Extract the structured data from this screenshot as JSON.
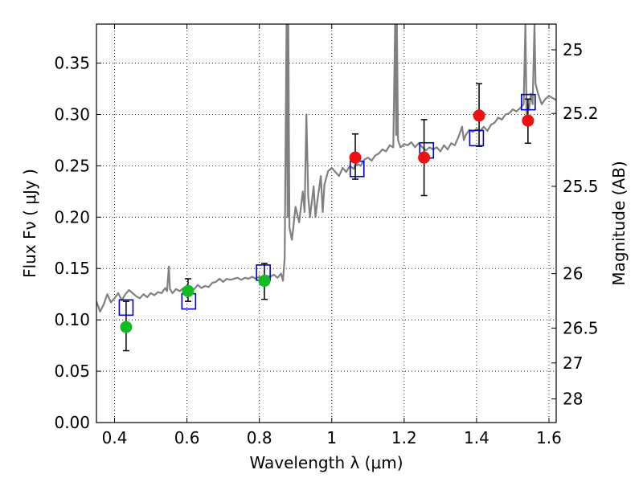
{
  "chart_data": {
    "type": "scatter",
    "xlabel": "Wavelength  λ (μm)",
    "ylabel": "Flux  Fν  ( μJy )",
    "ylabel_right": "Magnitude (AB)",
    "xlim": [
      0.35,
      1.62
    ],
    "ylim": [
      0.0,
      0.388
    ],
    "grid": true,
    "x_ticks": [
      {
        "value": 0.4,
        "label": "0.4"
      },
      {
        "value": 0.6,
        "label": "0.6"
      },
      {
        "value": 0.8,
        "label": "0.8"
      },
      {
        "value": 1.0,
        "label": "1"
      },
      {
        "value": 1.2,
        "label": "1.2"
      },
      {
        "value": 1.4,
        "label": "1.4"
      },
      {
        "value": 1.6,
        "label": "1.6"
      }
    ],
    "y_ticks": [
      {
        "value": 0.0,
        "label": "0.00"
      },
      {
        "value": 0.05,
        "label": "0.05"
      },
      {
        "value": 0.1,
        "label": "0.10"
      },
      {
        "value": 0.15,
        "label": "0.15"
      },
      {
        "value": 0.2,
        "label": "0.20"
      },
      {
        "value": 0.25,
        "label": "0.25"
      },
      {
        "value": 0.3,
        "label": "0.30"
      },
      {
        "value": 0.35,
        "label": "0.35"
      }
    ],
    "right_ticks": [
      {
        "flux": 0.363,
        "label": "25"
      },
      {
        "flux": 0.301,
        "label": "25.2"
      },
      {
        "flux": 0.23,
        "label": "25.5"
      },
      {
        "flux": 0.145,
        "label": "26"
      },
      {
        "flux": 0.092,
        "label": "26.5"
      },
      {
        "flux": 0.058,
        "label": "27"
      },
      {
        "flux": 0.023,
        "label": "28"
      }
    ],
    "series": [
      {
        "kind": "line",
        "color": "#808080",
        "points": [
          [
            0.35,
            0.118
          ],
          [
            0.36,
            0.108
          ],
          [
            0.37,
            0.115
          ],
          [
            0.38,
            0.125
          ],
          [
            0.39,
            0.117
          ],
          [
            0.4,
            0.121
          ],
          [
            0.41,
            0.126
          ],
          [
            0.42,
            0.119
          ],
          [
            0.43,
            0.125
          ],
          [
            0.44,
            0.129
          ],
          [
            0.45,
            0.126
          ],
          [
            0.46,
            0.123
          ],
          [
            0.47,
            0.121
          ],
          [
            0.48,
            0.125
          ],
          [
            0.49,
            0.122
          ],
          [
            0.5,
            0.126
          ],
          [
            0.51,
            0.124
          ],
          [
            0.52,
            0.127
          ],
          [
            0.53,
            0.126
          ],
          [
            0.54,
            0.131
          ],
          [
            0.545,
            0.128
          ],
          [
            0.55,
            0.152
          ],
          [
            0.553,
            0.13
          ],
          [
            0.56,
            0.126
          ],
          [
            0.57,
            0.13
          ],
          [
            0.58,
            0.128
          ],
          [
            0.59,
            0.131
          ],
          [
            0.6,
            0.127
          ],
          [
            0.61,
            0.131
          ],
          [
            0.62,
            0.13
          ],
          [
            0.63,
            0.134
          ],
          [
            0.64,
            0.131
          ],
          [
            0.65,
            0.133
          ],
          [
            0.66,
            0.132
          ],
          [
            0.67,
            0.136
          ],
          [
            0.68,
            0.137
          ],
          [
            0.69,
            0.14
          ],
          [
            0.7,
            0.137
          ],
          [
            0.71,
            0.14
          ],
          [
            0.72,
            0.139
          ],
          [
            0.73,
            0.14
          ],
          [
            0.74,
            0.141
          ],
          [
            0.75,
            0.139
          ],
          [
            0.76,
            0.141
          ],
          [
            0.77,
            0.14
          ],
          [
            0.78,
            0.142
          ],
          [
            0.79,
            0.14
          ],
          [
            0.8,
            0.142
          ],
          [
            0.81,
            0.141
          ],
          [
            0.82,
            0.143
          ],
          [
            0.83,
            0.142
          ],
          [
            0.84,
            0.144
          ],
          [
            0.85,
            0.141
          ],
          [
            0.86,
            0.145
          ],
          [
            0.865,
            0.138
          ],
          [
            0.87,
            0.16
          ],
          [
            0.875,
            0.388
          ],
          [
            0.878,
            0.2
          ],
          [
            0.88,
            0.388
          ],
          [
            0.883,
            0.19
          ],
          [
            0.89,
            0.178
          ],
          [
            0.9,
            0.21
          ],
          [
            0.91,
            0.195
          ],
          [
            0.92,
            0.225
          ],
          [
            0.925,
            0.205
          ],
          [
            0.93,
            0.3
          ],
          [
            0.935,
            0.22
          ],
          [
            0.94,
            0.2
          ],
          [
            0.95,
            0.23
          ],
          [
            0.955,
            0.2
          ],
          [
            0.96,
            0.215
          ],
          [
            0.97,
            0.24
          ],
          [
            0.975,
            0.205
          ],
          [
            0.98,
            0.232
          ],
          [
            0.99,
            0.245
          ],
          [
            1.0,
            0.248
          ],
          [
            1.01,
            0.244
          ],
          [
            1.02,
            0.24
          ],
          [
            1.03,
            0.248
          ],
          [
            1.04,
            0.244
          ],
          [
            1.05,
            0.25
          ],
          [
            1.06,
            0.247
          ],
          [
            1.07,
            0.252
          ],
          [
            1.08,
            0.25
          ],
          [
            1.09,
            0.256
          ],
          [
            1.1,
            0.258
          ],
          [
            1.11,
            0.255
          ],
          [
            1.12,
            0.26
          ],
          [
            1.13,
            0.262
          ],
          [
            1.14,
            0.266
          ],
          [
            1.15,
            0.264
          ],
          [
            1.16,
            0.27
          ],
          [
            1.17,
            0.268
          ],
          [
            1.175,
            0.388
          ],
          [
            1.178,
            0.28
          ],
          [
            1.18,
            0.388
          ],
          [
            1.183,
            0.275
          ],
          [
            1.19,
            0.268
          ],
          [
            1.2,
            0.271
          ],
          [
            1.21,
            0.27
          ],
          [
            1.22,
            0.273
          ],
          [
            1.23,
            0.268
          ],
          [
            1.24,
            0.272
          ],
          [
            1.25,
            0.268
          ],
          [
            1.26,
            0.265
          ],
          [
            1.27,
            0.268
          ],
          [
            1.28,
            0.266
          ],
          [
            1.29,
            0.268
          ],
          [
            1.3,
            0.264
          ],
          [
            1.31,
            0.27
          ],
          [
            1.32,
            0.266
          ],
          [
            1.33,
            0.272
          ],
          [
            1.34,
            0.27
          ],
          [
            1.35,
            0.278
          ],
          [
            1.36,
            0.288
          ],
          [
            1.365,
            0.275
          ],
          [
            1.37,
            0.28
          ],
          [
            1.38,
            0.285
          ],
          [
            1.39,
            0.283
          ],
          [
            1.4,
            0.286
          ],
          [
            1.41,
            0.284
          ],
          [
            1.42,
            0.288
          ],
          [
            1.43,
            0.284
          ],
          [
            1.44,
            0.29
          ],
          [
            1.45,
            0.292
          ],
          [
            1.46,
            0.297
          ],
          [
            1.47,
            0.295
          ],
          [
            1.48,
            0.3
          ],
          [
            1.49,
            0.301
          ],
          [
            1.5,
            0.305
          ],
          [
            1.51,
            0.303
          ],
          [
            1.52,
            0.306
          ],
          [
            1.53,
            0.31
          ],
          [
            1.535,
            0.388
          ],
          [
            1.538,
            0.3
          ],
          [
            1.54,
            0.31
          ],
          [
            1.545,
            0.305
          ],
          [
            1.55,
            0.32
          ],
          [
            1.555,
            0.31
          ],
          [
            1.56,
            0.388
          ],
          [
            1.563,
            0.33
          ],
          [
            1.57,
            0.32
          ],
          [
            1.58,
            0.31
          ],
          [
            1.59,
            0.315
          ],
          [
            1.6,
            0.318
          ],
          [
            1.61,
            0.316
          ],
          [
            1.62,
            0.314
          ]
        ]
      },
      {
        "kind": "errorbar",
        "color": "#000000",
        "points": [
          [
            0.432,
            0.093,
            0.07,
            0.118
          ],
          [
            0.603,
            0.128,
            0.118,
            0.14
          ],
          [
            0.814,
            0.138,
            0.12,
            0.155
          ],
          [
            1.065,
            0.258,
            0.237,
            0.281
          ],
          [
            1.255,
            0.258,
            0.221,
            0.295
          ],
          [
            1.407,
            0.299,
            0.269,
            0.33
          ],
          [
            1.542,
            0.294,
            0.272,
            0.315
          ]
        ]
      },
      {
        "kind": "marker",
        "marker": "square",
        "color": "#0000cc",
        "points": [
          [
            0.432,
            0.112
          ],
          [
            0.605,
            0.118
          ],
          [
            0.811,
            0.146
          ],
          [
            1.07,
            0.247
          ],
          [
            1.262,
            0.265
          ],
          [
            1.4,
            0.277
          ],
          [
            1.543,
            0.312
          ]
        ]
      },
      {
        "kind": "marker",
        "marker": "circle",
        "color": "#11bb22",
        "points": [
          [
            0.432,
            0.093
          ],
          [
            0.603,
            0.128
          ],
          [
            0.814,
            0.138
          ]
        ]
      },
      {
        "kind": "marker",
        "marker": "circle",
        "color": "#ee1111",
        "points": [
          [
            1.065,
            0.258
          ],
          [
            1.255,
            0.258
          ],
          [
            1.407,
            0.299
          ],
          [
            1.542,
            0.294
          ]
        ]
      }
    ]
  }
}
